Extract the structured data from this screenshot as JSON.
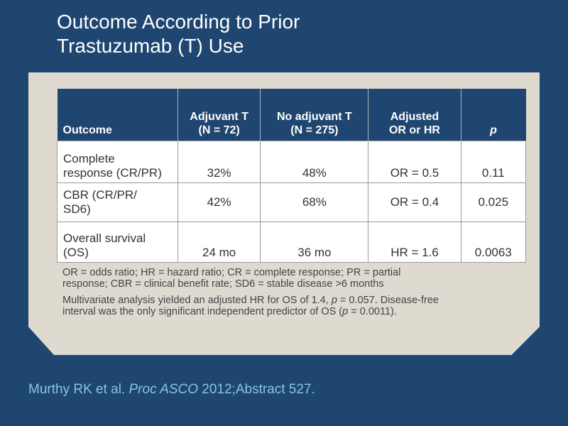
{
  "title": {
    "line1": "Outcome According to Prior",
    "line2": "Trastuzumab (T) Use"
  },
  "table": {
    "headers": {
      "outcome": "Outcome",
      "adjuvant_line1": "Adjuvant T",
      "adjuvant_line2": "(N = 72)",
      "noadjuvant_line1": "No adjuvant T",
      "noadjuvant_line2": "(N = 275)",
      "adjusted_line1": "Adjusted",
      "adjusted_line2": "OR or HR",
      "p": "p"
    },
    "rows": [
      {
        "label_line1": "Complete",
        "label_line2": "response (CR/PR)",
        "adjuvant": "32%",
        "no_adjuvant": "48%",
        "adjusted": "OR = 0.5",
        "p": "0.11"
      },
      {
        "label_line1": "CBR (CR/PR/",
        "label_line2": "SD6)",
        "adjuvant": "42%",
        "no_adjuvant": "68%",
        "adjusted": "OR = 0.4",
        "p": "0.025"
      },
      {
        "label_line1": "Overall survival",
        "label_line2": "(OS)",
        "adjuvant": "24 mo",
        "no_adjuvant": "36 mo",
        "adjusted": "HR = 1.6",
        "p": "0.0063"
      }
    ]
  },
  "notes": {
    "abbreviations_line1": "OR = odds ratio; HR = hazard ratio; CR = complete response; PR = partial",
    "abbreviations_line2": "response; CBR = clinical benefit rate; SD6 = stable disease >6 months",
    "multivariate_pre": "Multivariate analysis yielded an adjusted HR for OS of 1.4, ",
    "multivariate_p": "p",
    "multivariate_mid": " = 0.057. Disease-free",
    "multivariate_line2_pre": "interval was the only significant independent predictor of OS (",
    "multivariate_line2_p": "p",
    "multivariate_line2_post": " = 0.0011)."
  },
  "citation": {
    "authors": "Murthy RK et al. ",
    "journal": "Proc ASCO",
    "details": " 2012;Abstract 527."
  },
  "colors": {
    "background": "#1f4670",
    "panel": "#dedad0",
    "header": "#1f4670",
    "citation": "#86c4e6"
  }
}
